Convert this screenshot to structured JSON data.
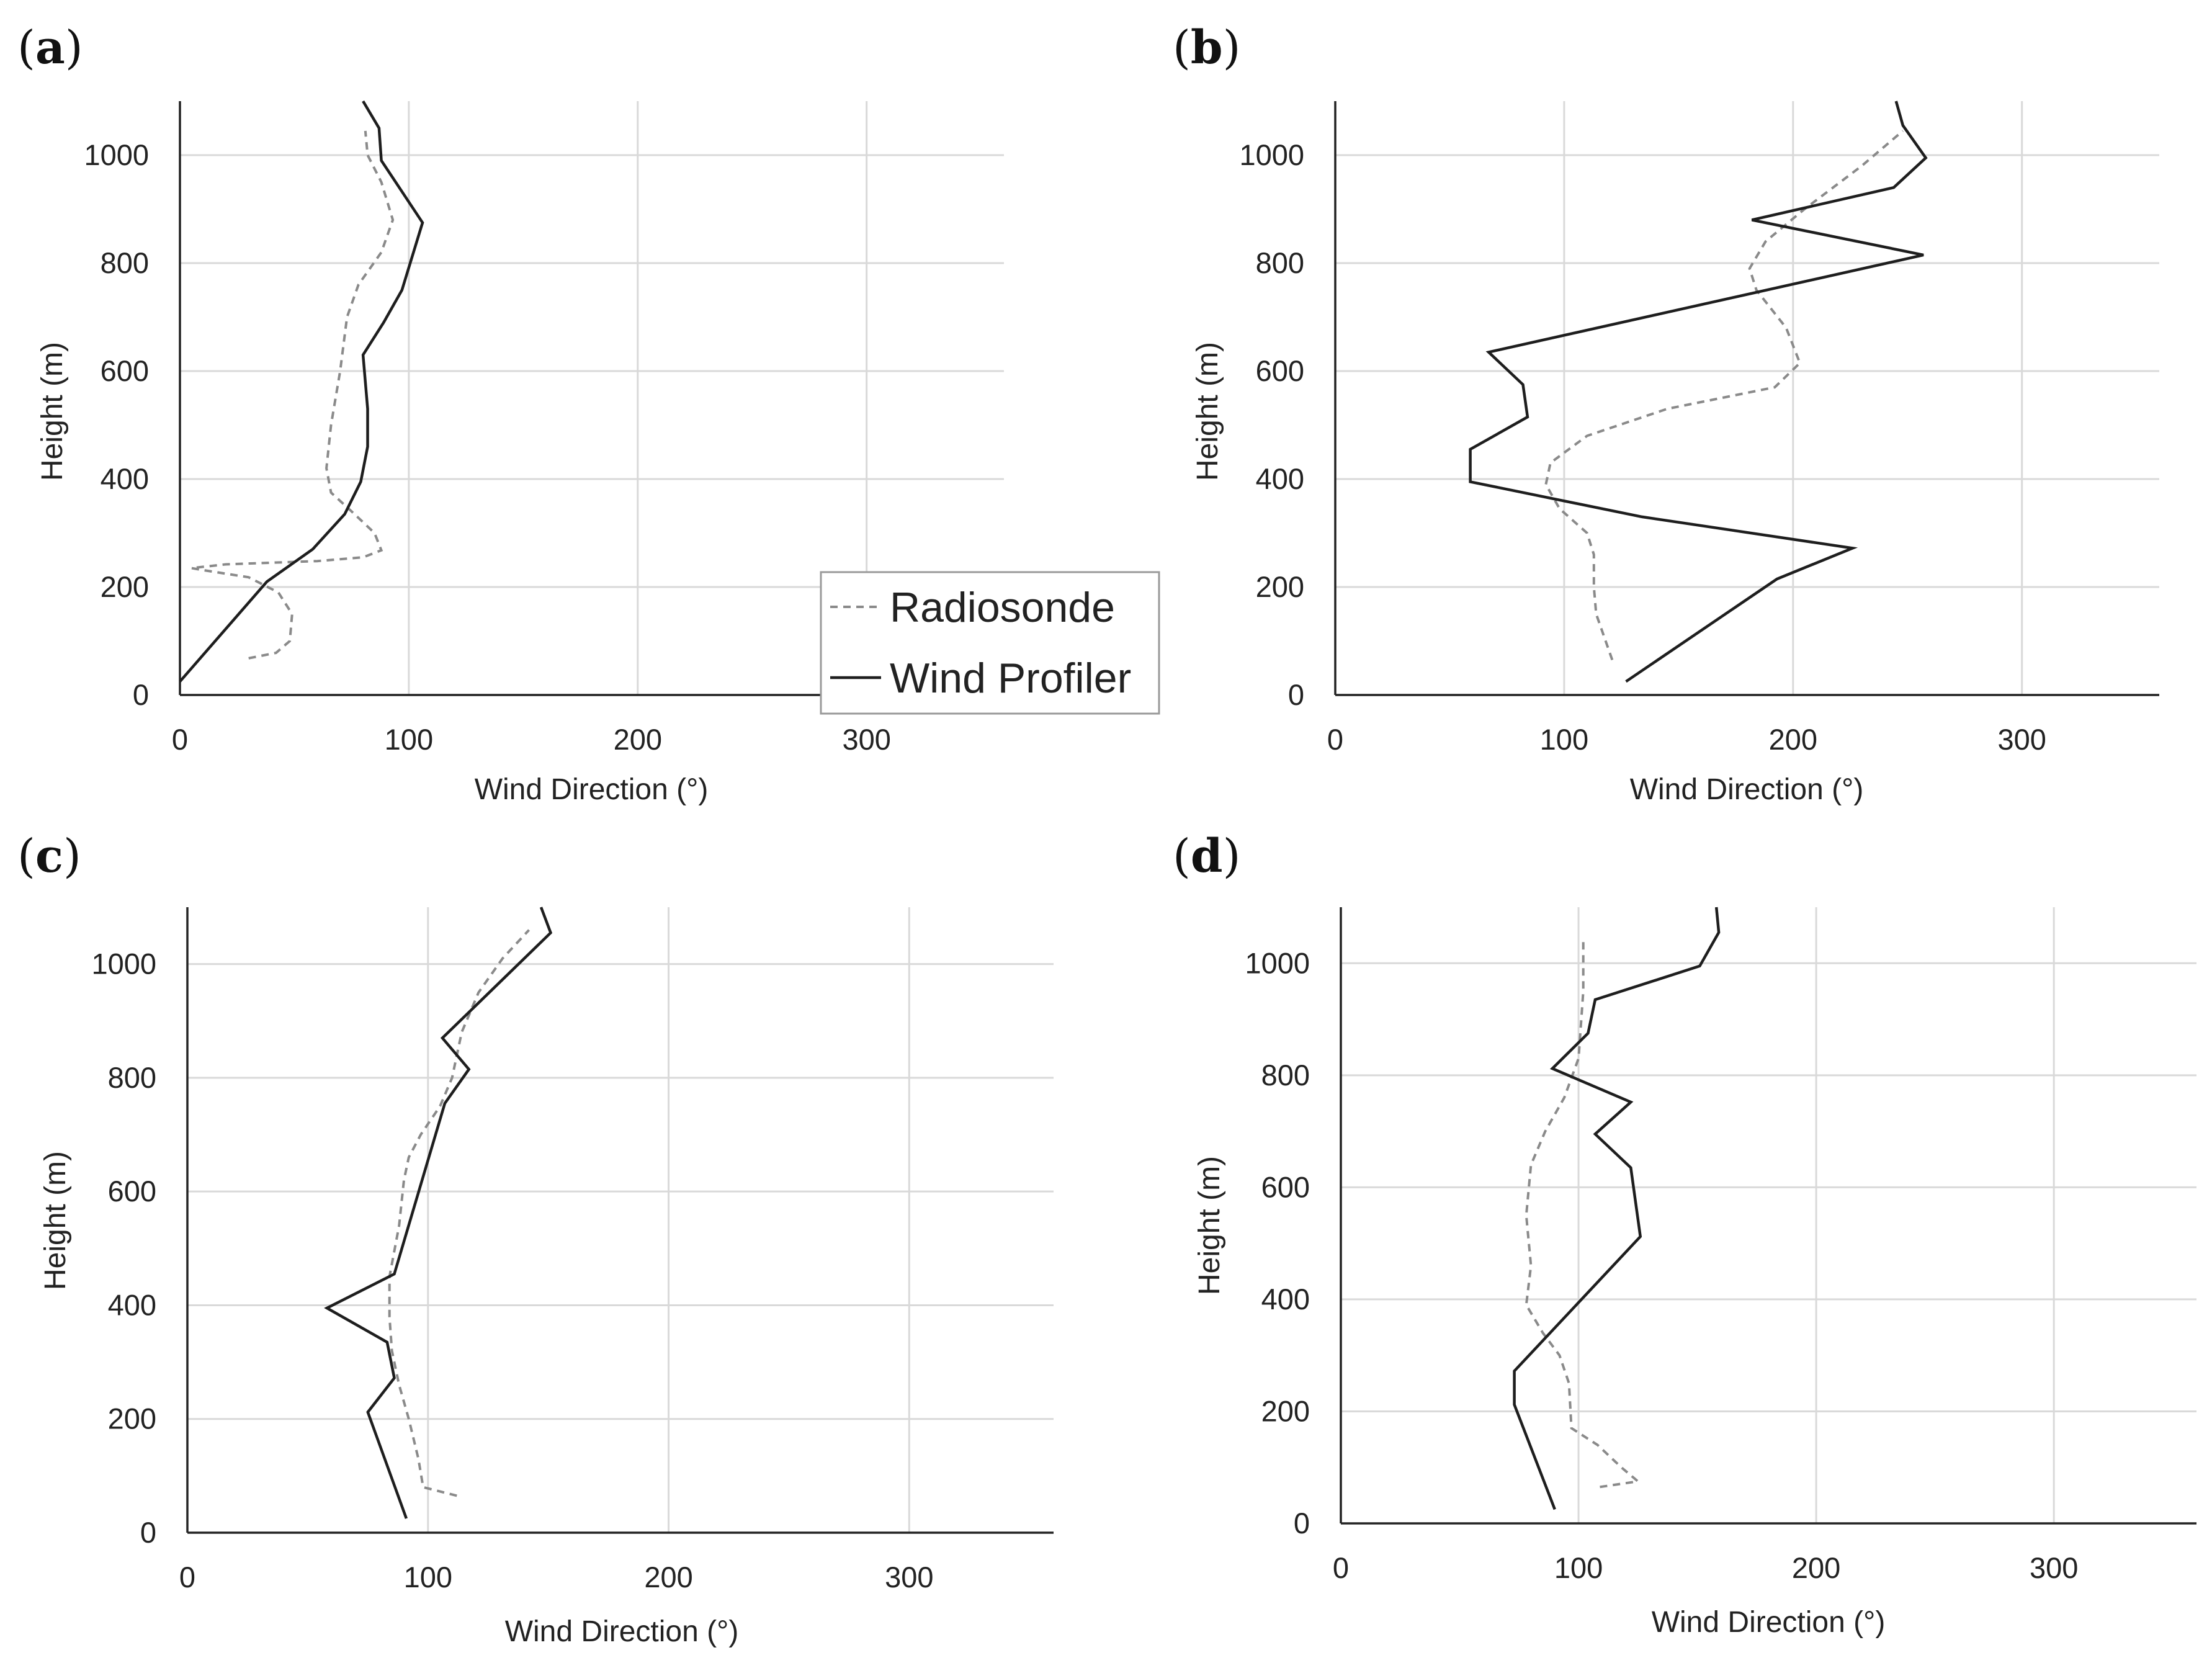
{
  "figure": {
    "legend": {
      "radiosonde": "Radiosonde",
      "profiler": "Wind Profiler"
    }
  },
  "chart_data": [
    {
      "type": "line",
      "panel": "a",
      "label_open": "(",
      "label_letter": "a",
      "label_close": ")",
      "xlabel": "Wind Direction (°)",
      "ylabel": "Height (m)",
      "xlim": [
        0,
        360
      ],
      "ylim": [
        0,
        1100
      ],
      "xticks": [
        "0",
        "100",
        "200",
        "300"
      ],
      "yticks": [
        "0",
        "200",
        "400",
        "600",
        "800",
        "1000"
      ],
      "grid": true,
      "legend_position": "lower-right",
      "series": [
        {
          "name": "Radiosonde",
          "style": "dashed",
          "color": "#8a8a8a",
          "x": [
            30,
            42,
            48,
            49,
            43,
            30,
            12,
            5,
            20,
            60,
            80,
            88,
            85,
            75,
            66,
            64,
            66,
            70,
            73,
            78,
            88,
            93,
            88,
            82,
            81
          ],
          "y": [
            68,
            78,
            100,
            150,
            190,
            218,
            230,
            235,
            242,
            248,
            255,
            268,
            300,
            340,
            375,
            420,
            500,
            600,
            700,
            760,
            820,
            880,
            950,
            1000,
            1045
          ]
        },
        {
          "name": "Wind Profiler",
          "style": "solid",
          "color": "#1e1e1e",
          "x": [
            0,
            38,
            58,
            72,
            79,
            82,
            82,
            80,
            89,
            97,
            106,
            88,
            87,
            80
          ],
          "y": [
            25,
            210,
            270,
            335,
            395,
            460,
            530,
            630,
            690,
            750,
            875,
            990,
            1050,
            1100
          ]
        }
      ]
    },
    {
      "type": "line",
      "panel": "b",
      "label_open": "(",
      "label_letter": "b",
      "label_close": ")",
      "xlabel": "Wind Direction (°)",
      "ylabel": "Height (m)",
      "xlim": [
        0,
        360
      ],
      "ylim": [
        0,
        1100
      ],
      "xticks": [
        "0",
        "100",
        "200",
        "300"
      ],
      "yticks": [
        "0",
        "200",
        "400",
        "600",
        "800",
        "1000"
      ],
      "grid": true,
      "series": [
        {
          "name": "Radiosonde",
          "style": "dashed",
          "color": "#8a8a8a",
          "x": [
            121,
            114,
            113,
            113,
            110,
            98,
            92,
            94,
            110,
            145,
            192,
            203,
            197,
            184,
            181,
            188,
            205,
            230,
            248
          ],
          "y": [
            65,
            150,
            200,
            260,
            300,
            345,
            390,
            430,
            480,
            530,
            570,
            615,
            680,
            750,
            790,
            840,
            900,
            980,
            1045
          ]
        },
        {
          "name": "Wind Profiler",
          "style": "solid",
          "color": "#1e1e1e",
          "x": [
            127,
            193,
            226,
            134,
            59,
            59,
            84,
            82,
            67,
            257,
            182,
            244,
            258,
            248,
            245
          ],
          "y": [
            25,
            215,
            272,
            330,
            395,
            455,
            515,
            575,
            635,
            815,
            880,
            940,
            995,
            1055,
            1100
          ]
        }
      ]
    },
    {
      "type": "line",
      "panel": "c",
      "label_open": "(",
      "label_letter": "c",
      "label_close": ")",
      "xlabel": "Wind Direction (°)",
      "ylabel": "Height (m)",
      "xlim": [
        0,
        360
      ],
      "ylim": [
        0,
        1100
      ],
      "xticks": [
        "0",
        "100",
        "200",
        "300"
      ],
      "yticks": [
        "0",
        "200",
        "400",
        "600",
        "800",
        "1000"
      ],
      "grid": true,
      "series": [
        {
          "name": "Radiosonde",
          "style": "dashed",
          "color": "#8a8a8a",
          "x": [
            112,
            98,
            96,
            92,
            88,
            85,
            84,
            84,
            88,
            90,
            92,
            97,
            105,
            110,
            114,
            121,
            131,
            142
          ],
          "y": [
            65,
            80,
            130,
            200,
            260,
            320,
            380,
            450,
            540,
            620,
            660,
            700,
            750,
            800,
            880,
            950,
            1010,
            1060
          ]
        },
        {
          "name": "Wind Profiler",
          "style": "solid",
          "color": "#1e1e1e",
          "x": [
            91,
            75,
            86,
            83,
            58,
            86,
            107,
            117,
            106,
            151,
            147
          ],
          "y": [
            25,
            212,
            272,
            335,
            395,
            455,
            755,
            815,
            870,
            1055,
            1100
          ]
        }
      ]
    },
    {
      "type": "line",
      "panel": "d",
      "label_open": "(",
      "label_letter": "d",
      "label_close": ")",
      "xlabel": "Wind Direction (°)",
      "ylabel": "Height (m)",
      "xlim": [
        0,
        360
      ],
      "ylim": [
        0,
        1100
      ],
      "xticks": [
        "0",
        "100",
        "200",
        "300"
      ],
      "yticks": [
        "0",
        "200",
        "400",
        "600",
        "800",
        "1000"
      ],
      "grid": true,
      "series": [
        {
          "name": "Radiosonde",
          "style": "dashed",
          "color": "#8a8a8a",
          "x": [
            109,
            125,
            118,
            108,
            97,
            96,
            92,
            85,
            78,
            80,
            78,
            80,
            86,
            94,
            100,
            102,
            102
          ],
          "y": [
            65,
            75,
            100,
            140,
            170,
            250,
            300,
            340,
            390,
            460,
            550,
            640,
            700,
            760,
            830,
            950,
            1045
          ]
        },
        {
          "name": "Wind Profiler",
          "style": "solid",
          "color": "#1e1e1e",
          "x": [
            90,
            73,
            73,
            126,
            122,
            107,
            122,
            89,
            104,
            107,
            151,
            159,
            158
          ],
          "y": [
            25,
            212,
            272,
            512,
            635,
            695,
            752,
            812,
            875,
            935,
            995,
            1055,
            1100
          ]
        }
      ]
    }
  ]
}
